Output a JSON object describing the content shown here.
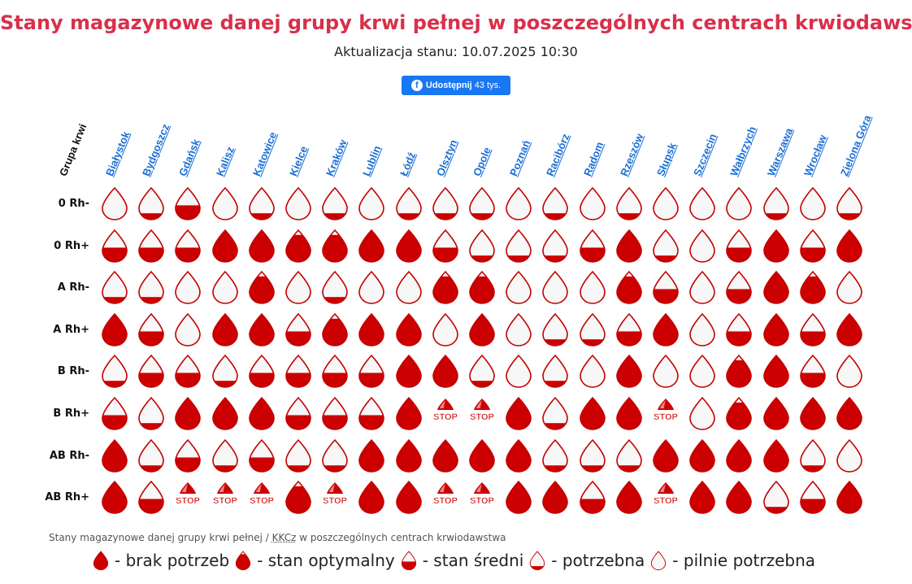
{
  "title": "Stany magazynowe danej grupy krwi pełnej w poszczególnych centrach krwiodawstwa",
  "subtitle": "Aktualizacja stanu: 10.07.2025 10:30",
  "share": {
    "label": "Udostępnij",
    "count": "43 tys.",
    "icon": "facebook-icon"
  },
  "corner_label": "Grupa krwi",
  "cities": [
    "Białystok",
    "Bydgoszcz",
    "Gdańsk",
    "Kalisz",
    "Katowice",
    "Kielce",
    "Kraków",
    "Lublin",
    "Łódź",
    "Olsztyn",
    "Opole",
    "Poznań",
    "Racibórz",
    "Radom",
    "Rzeszów",
    "Słupsk",
    "Szczecin",
    "Wałbrzych",
    "Warszawa",
    "Wrocław",
    "Zielona Góra"
  ],
  "blood_groups": [
    "0 Rh-",
    "0 Rh+",
    "A Rh-",
    "A Rh+",
    "B Rh-",
    "B Rh+",
    "AB Rh-",
    "AB Rh+"
  ],
  "level_fill": {
    "brak": 1.0,
    "optymalny": 0.85,
    "sredni": 0.45,
    "potrzebna": 0.2,
    "pilnie": 0.0,
    "stop": null
  },
  "grid": [
    [
      "pilnie",
      "potrzebna",
      "sredni",
      "pilnie",
      "potrzebna",
      "pilnie",
      "potrzebna",
      "pilnie",
      "potrzebna",
      "potrzebna",
      "potrzebna",
      "pilnie",
      "potrzebna",
      "pilnie",
      "potrzebna",
      "pilnie",
      "pilnie",
      "pilnie",
      "potrzebna",
      "pilnie",
      "potrzebna"
    ],
    [
      "sredni",
      "sredni",
      "sredni",
      "brak",
      "brak",
      "optymalny",
      "optymalny",
      "brak",
      "brak",
      "sredni",
      "potrzebna",
      "potrzebna",
      "potrzebna",
      "sredni",
      "brak",
      "potrzebna",
      "pilnie",
      "sredni",
      "brak",
      "sredni",
      "brak"
    ],
    [
      "potrzebna",
      "potrzebna",
      "pilnie",
      "pilnie",
      "optymalny",
      "pilnie",
      "potrzebna",
      "pilnie",
      "pilnie",
      "optymalny",
      "optymalny",
      "pilnie",
      "pilnie",
      "pilnie",
      "optymalny",
      "sredni",
      "pilnie",
      "sredni",
      "brak",
      "optymalny",
      "pilnie"
    ],
    [
      "brak",
      "sredni",
      "pilnie",
      "brak",
      "brak",
      "sredni",
      "optymalny",
      "brak",
      "brak",
      "pilnie",
      "brak",
      "pilnie",
      "potrzebna",
      "potrzebna",
      "sredni",
      "brak",
      "pilnie",
      "sredni",
      "brak",
      "sredni",
      "brak"
    ],
    [
      "potrzebna",
      "sredni",
      "sredni",
      "potrzebna",
      "sredni",
      "sredni",
      "sredni",
      "sredni",
      "brak",
      "brak",
      "potrzebna",
      "pilnie",
      "potrzebna",
      "pilnie",
      "brak",
      "pilnie",
      "pilnie",
      "optymalny",
      "brak",
      "sredni",
      "pilnie"
    ],
    [
      "sredni",
      "potrzebna",
      "brak",
      "brak",
      "brak",
      "sredni",
      "sredni",
      "sredni",
      "brak",
      "stop",
      "stop",
      "brak",
      "potrzebna",
      "brak",
      "brak",
      "stop",
      "pilnie",
      "optymalny",
      "brak",
      "brak",
      "brak"
    ],
    [
      "brak",
      "potrzebna",
      "sredni",
      "potrzebna",
      "sredni",
      "potrzebna",
      "potrzebna",
      "brak",
      "brak",
      "brak",
      "brak",
      "brak",
      "potrzebna",
      "potrzebna",
      "potrzebna",
      "brak",
      "brak",
      "brak",
      "brak",
      "potrzebna",
      "pilnie"
    ],
    [
      "brak",
      "sredni",
      "stop",
      "stop",
      "stop",
      "optymalny",
      "stop",
      "brak",
      "brak",
      "stop",
      "stop",
      "brak",
      "brak",
      "sredni",
      "brak",
      "stop",
      "brak",
      "brak",
      "potrzebna",
      "sredni",
      "brak"
    ]
  ],
  "stop_label": "STOP",
  "caption_text": "Stany magazynowe danej grupy krwi pełnej / ",
  "caption_abbr": "KKCz",
  "caption_rest": " w poszczególnych centrach krwiodawstwa",
  "legend": [
    {
      "level": "brak",
      "label": " - brak potrzeb"
    },
    {
      "level": "optymalny",
      "label": " - stan optymalny"
    },
    {
      "level": "sredni",
      "label": " - stan średni"
    },
    {
      "level": "potrzebna",
      "label": " - potrzebna"
    },
    {
      "level": "pilnie",
      "label": " - pilnie potrzebna"
    }
  ],
  "colors": {
    "title": "#d9304a",
    "blood": "#cc0000",
    "empty": "#f7f7f7",
    "outline": "#c40000",
    "link": "#1a6fd6",
    "share": "#1877f2"
  }
}
